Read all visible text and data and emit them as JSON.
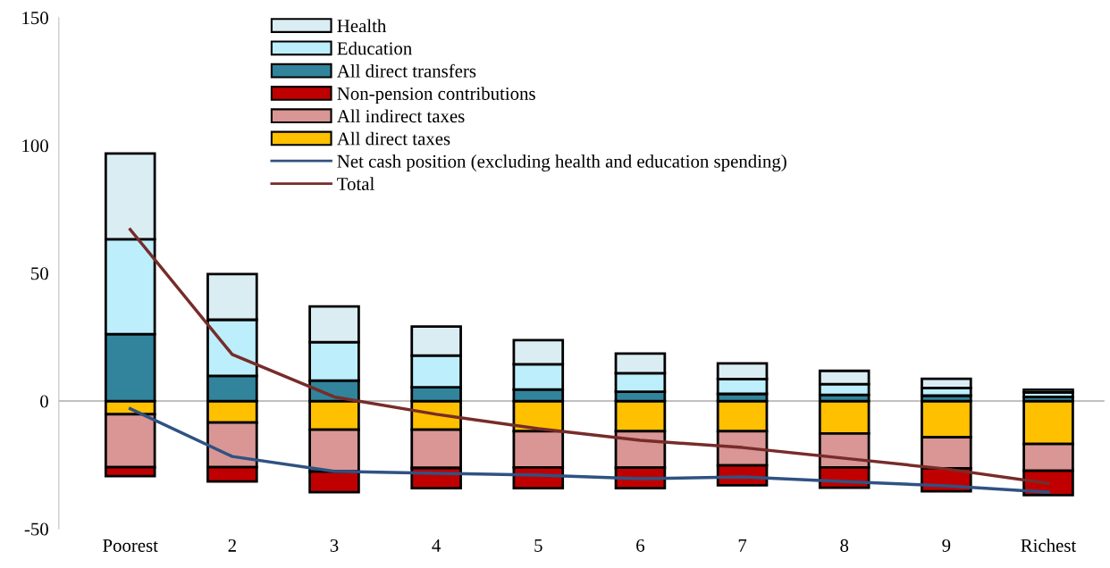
{
  "chart_data": {
    "type": "bar",
    "stacked": true,
    "categories": [
      "Poorest",
      "2",
      "3",
      "4",
      "5",
      "6",
      "7",
      "8",
      "9",
      "Richest"
    ],
    "series": [
      {
        "name": "All direct taxes",
        "color": "#ffc000",
        "values": [
          -5.2,
          -8.4,
          -11.2,
          -11.2,
          -11.8,
          -11.8,
          -11.8,
          -12.7,
          -14.2,
          -16.8
        ]
      },
      {
        "name": "All indirect taxes",
        "color": "#d99694",
        "values": [
          -20.7,
          -17.5,
          -16.4,
          -15.0,
          -14.2,
          -14.3,
          -13.4,
          -13.3,
          -12.1,
          -10.5
        ]
      },
      {
        "name": "Non-pension contributions",
        "color": "#c00000",
        "values": [
          -3.5,
          -5.6,
          -8.1,
          -7.9,
          -8.1,
          -8.0,
          -7.8,
          -7.9,
          -9.0,
          -9.5
        ]
      },
      {
        "name": "All direct transfers",
        "color": "#31849b",
        "values": [
          26.2,
          9.8,
          8.0,
          5.4,
          4.5,
          3.6,
          2.8,
          2.4,
          2.1,
          1.6
        ]
      },
      {
        "name": "Education",
        "color": "#bdeefc",
        "values": [
          37.1,
          22.0,
          15.0,
          12.4,
          9.9,
          7.3,
          5.8,
          4.2,
          3.0,
          1.8
        ]
      },
      {
        "name": "Health",
        "color": "#daedf3",
        "values": [
          33.5,
          17.9,
          14.0,
          11.3,
          9.4,
          7.7,
          6.1,
          5.2,
          3.6,
          1.0
        ]
      },
      {
        "name": "Net cash position (excluding health and education spending)",
        "type": "line",
        "color": "#2f5282",
        "values": [
          -3.0,
          -21.7,
          -27.5,
          -28.3,
          -29.0,
          -30.4,
          -29.7,
          -31.5,
          -33.2,
          -35.7
        ]
      },
      {
        "name": "Total",
        "type": "line",
        "color": "#772c2a",
        "values": [
          67.1,
          18.2,
          1.6,
          -5.2,
          -10.8,
          -15.4,
          -18.2,
          -22.4,
          -26.6,
          -32.2
        ]
      }
    ],
    "ylim": [
      -50,
      150
    ],
    "yticks": [
      -50,
      0,
      50,
      100,
      150
    ],
    "grid": false,
    "legend": "top",
    "ref_lines": [
      {
        "axis": "y",
        "value": 0,
        "color": "#c0c0c0"
      }
    ]
  }
}
